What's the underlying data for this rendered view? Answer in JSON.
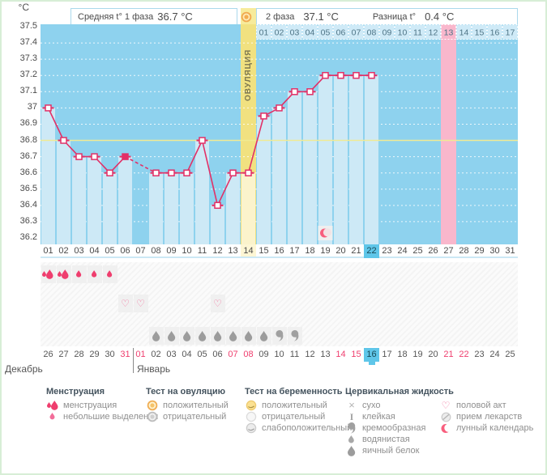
{
  "header": {
    "unit_label": "°C",
    "phase1_label": "Средняя t° 1 фаза",
    "phase1_value": "36.7 °C",
    "phase2_label": "2 фаза",
    "phase2_value": "37.1 °C",
    "diff_label": "Разница t°",
    "diff_value": "0.4 °C",
    "ovulation_icon": "ovulation-test-positive"
  },
  "chart_data": {
    "type": "line",
    "unit": "°C",
    "ylim": [
      36.2,
      37.5
    ],
    "ytick_step": 0.1,
    "yticks": [
      "37.5",
      "37.4",
      "37.3",
      "37.2",
      "37.1",
      "37",
      "36.9",
      "36.8",
      "36.7",
      "36.6",
      "36.5",
      "36.4",
      "36.3",
      "36.2"
    ],
    "x_cycle_days": [
      "01",
      "02",
      "03",
      "04",
      "05",
      "06",
      "07",
      "08",
      "09",
      "10",
      "11",
      "12",
      "13",
      "14",
      "15",
      "16",
      "17",
      "18",
      "19",
      "20",
      "21",
      "22",
      "23",
      "24",
      "25",
      "26",
      "27",
      "28",
      "29",
      "30",
      "31"
    ],
    "temps": [
      37.0,
      36.8,
      36.7,
      36.7,
      36.6,
      36.7,
      null,
      36.6,
      36.6,
      36.6,
      36.8,
      36.4,
      36.6,
      36.6,
      36.95,
      37.0,
      37.1,
      37.1,
      37.2,
      37.2,
      37.2,
      37.2,
      null,
      null,
      null,
      null,
      null,
      null,
      null,
      null,
      null
    ],
    "coverline": 36.8,
    "ovulation_day": 14,
    "ovulation_band_label": "ОВУЛЯЦИЯ",
    "current_cycle_day": 22,
    "highlight_cycle_day": 27,
    "dpo_labels": [
      "01",
      "02",
      "03",
      "04",
      "05",
      "06",
      "07",
      "08",
      "09",
      "10",
      "11",
      "12",
      "13",
      "14",
      "15",
      "16",
      "17"
    ],
    "dpo_highlight": "13",
    "lunar_day": 19,
    "filled_marker_day": 6,
    "dashed_gap_between": [
      6,
      8
    ],
    "grid": "dotted horizontal lines every 0.1 °C"
  },
  "markers": {
    "menstruation_days": [
      1,
      2
    ],
    "spotting_days": [
      3,
      4,
      5
    ],
    "intercourse_days": [
      6,
      7,
      12
    ],
    "cervical_eggwhite_days": [
      8,
      9,
      10,
      11,
      12,
      13,
      14,
      15
    ],
    "cervical_creamy_days": [
      16,
      17
    ]
  },
  "dates": {
    "values": [
      "26",
      "27",
      "28",
      "29",
      "30",
      "31",
      "01",
      "02",
      "03",
      "04",
      "05",
      "06",
      "07",
      "08",
      "09",
      "10",
      "11",
      "12",
      "13",
      "14",
      "15",
      "16",
      "17",
      "18",
      "19",
      "20",
      "21",
      "22",
      "23",
      "24",
      "25"
    ],
    "red_indices": [
      5,
      6,
      12,
      13,
      19,
      20,
      26,
      27
    ],
    "today_index": 21,
    "divider_after_index": 5,
    "month1": "Декабрь",
    "month2": "Январь"
  },
  "legend": {
    "columns": [
      {
        "title": "Менструация",
        "items": [
          {
            "icon": "menstruation-heavy",
            "label": "менструация"
          },
          {
            "icon": "menstruation-light",
            "label": "небольшие выделения"
          }
        ]
      },
      {
        "title": "Тест на овуляцию",
        "items": [
          {
            "icon": "ovulation-test-positive",
            "label": "положительный"
          },
          {
            "icon": "ovulation-test-negative",
            "label": "отрицательный"
          }
        ]
      },
      {
        "title": "Тест на беременность",
        "items": [
          {
            "icon": "pregnancy-test-positive",
            "label": "положительный"
          },
          {
            "icon": "pregnancy-test-negative",
            "label": "отрицательный"
          },
          {
            "icon": "pregnancy-test-weak-positive",
            "label": "слабоположительный"
          }
        ]
      },
      {
        "title": "Цервикальная жидкость",
        "items": [
          {
            "icon": "cf-dry",
            "label": "сухо"
          },
          {
            "icon": "cf-sticky",
            "label": "клейкая"
          },
          {
            "icon": "cf-creamy",
            "label": "кремообразная"
          },
          {
            "icon": "cf-watery",
            "label": "водянистая"
          },
          {
            "icon": "cf-eggwhite",
            "label": "яичный белок"
          }
        ]
      },
      {
        "title": "",
        "items": [
          {
            "icon": "intercourse",
            "label": "половой акт"
          },
          {
            "icon": "medication",
            "label": "прием лекарств"
          },
          {
            "icon": "lunar-calendar",
            "label": "лунный календарь"
          }
        ]
      }
    ]
  },
  "colors": {
    "line_pink": "#e23067",
    "dark_blue": "#8ed2ee",
    "light_blue": "#cde9f6",
    "ovulation_dark": "#f1e180",
    "ovulation_light": "#fbf3cc",
    "highlight_pink": "#f9b7cc",
    "coverline_yellow": "#f0ea93",
    "today_blue": "#5fc6e9",
    "red_date": "#ef3e6e",
    "dpo_cell_blue": "#cfeaf7",
    "gray_icon": "#9c9c9c",
    "header_cell_yellow": "#f7eb9b"
  }
}
